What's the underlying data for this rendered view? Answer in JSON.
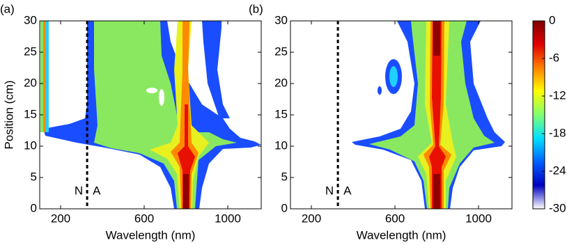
{
  "chart_data": [
    {
      "type": "heatmap",
      "panel_label": "(a)",
      "xlabel": "Wavelength (nm)",
      "ylabel": "Position (cm)",
      "xlim": [
        100,
        1160
      ],
      "xticks": [
        200,
        600,
        1000
      ],
      "ylim": [
        0,
        30
      ],
      "yticks": [
        0,
        5,
        10,
        15,
        20,
        25,
        30
      ],
      "marker_x": 327,
      "annotations": [
        "N",
        "A"
      ]
    },
    {
      "type": "heatmap",
      "panel_label": "(b)",
      "xlabel": "Wavelength (nm)",
      "xlim": [
        100,
        1160
      ],
      "xticks": [
        200,
        600,
        1000
      ],
      "ylim": [
        0,
        30
      ],
      "yticks": [
        0,
        5,
        10,
        15,
        20,
        25,
        30
      ],
      "marker_x": 327,
      "annotations": [
        "N",
        "A"
      ]
    },
    {
      "type": "colorbar",
      "ylim": [
        -30,
        0
      ],
      "yticks": [
        0,
        -6,
        -12,
        -18,
        -24,
        -30
      ],
      "colors": [
        "#ffffff",
        "#0000c0",
        "#0060ff",
        "#00e0ff",
        "#80ff70",
        "#ffff00",
        "#ff8000",
        "#e00000",
        "#800000"
      ]
    }
  ]
}
